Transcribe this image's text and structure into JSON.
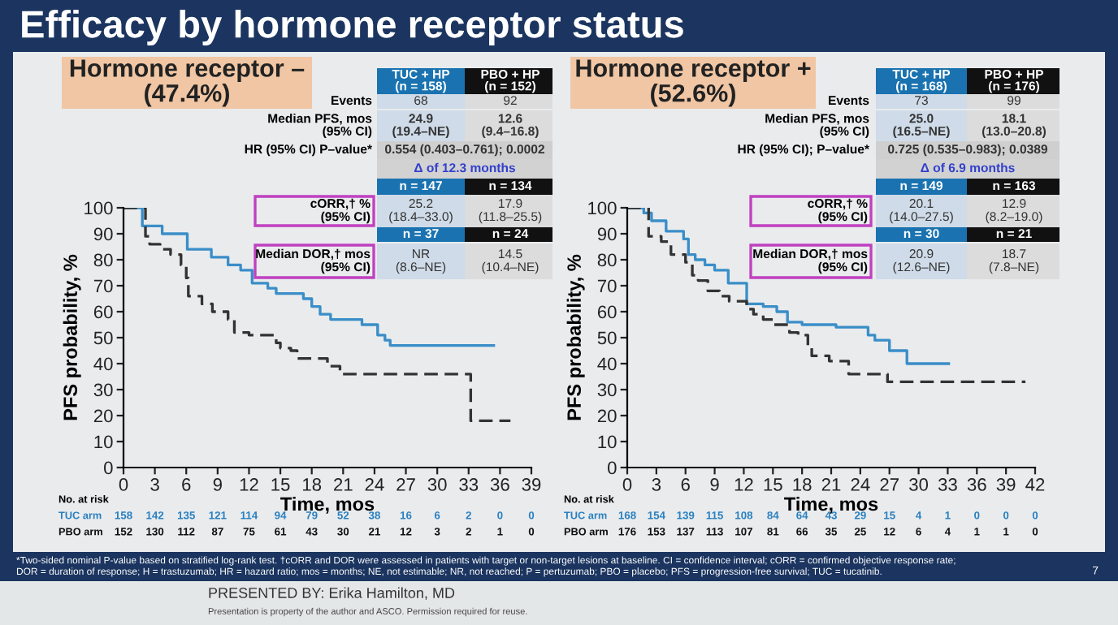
{
  "chart_data": [
    {
      "type": "step",
      "title": "Efficacy by hormone receptor status",
      "subtitle": "Hormone receptor –\n(47.4%)",
      "xlabel": "Time, mos",
      "ylabel": "PFS probability, %",
      "xlim": [
        0,
        39
      ],
      "xticks": [
        0,
        3,
        6,
        9,
        12,
        15,
        18,
        21,
        24,
        27,
        30,
        33,
        36,
        39
      ],
      "ylim": [
        0,
        100
      ],
      "yticks": [
        0,
        10,
        20,
        30,
        40,
        50,
        60,
        70,
        80,
        90,
        100
      ],
      "grid": false,
      "legend": false,
      "marker": "none",
      "series": [
        {
          "color": "#3a8ec8",
          "line_style": "solid",
          "x": [
            0,
            1.8,
            3.7,
            6.1,
            8.4,
            10,
            11.2,
            12.3,
            13.8,
            14.6,
            17.2,
            18,
            18.8,
            19.8,
            22.8,
            24.3,
            25,
            25.5,
            35.4
          ],
          "values": [
            100,
            93,
            90,
            84,
            81,
            78,
            76,
            71,
            69,
            67,
            65,
            62,
            59,
            57,
            55,
            51,
            49,
            47,
            47
          ]
        },
        {
          "color": "#333333",
          "line_style": "dashed",
          "x": [
            0,
            2.1,
            2.5,
            3.5,
            4.5,
            5.5,
            6,
            6.2,
            7.5,
            8.5,
            10,
            10.6,
            12,
            14.6,
            15,
            16,
            16.6,
            18,
            19.5,
            20.7,
            33,
            33.2,
            37
          ],
          "values": [
            100,
            89,
            86,
            84,
            82,
            78,
            73,
            66,
            63,
            60,
            57,
            52,
            51,
            48,
            46,
            45,
            42,
            42,
            39,
            36,
            36,
            18,
            18
          ]
        }
      ],
      "annotations": [
        "TUC + HP\n(n = 158)",
        "PBO + HP\n(n = 152)",
        "Events",
        "68",
        "92",
        "Median PFS, mos\n(95% CI)",
        "24.9\n(19.4–NE)",
        "12.6\n(9.4–16.8)",
        "HR (95% CI) P–value*",
        "0.554 (0.403–0.761); 0.0002",
        "Δ of 12.3 months",
        "n = 147",
        "n = 134",
        "cORR,† %\n(95% CI)",
        "25.2\n(18.4–33.0)",
        "17.9\n(11.8–25.5)",
        "n = 37",
        "n = 24",
        "Median DOR,† mos\n(95% CI)",
        "NR\n(8.6–NE)",
        "14.5\n(10.4–NE)",
        "No. at risk",
        "TUC arm",
        "PBO arm",
        "158",
        "142",
        "135",
        "121",
        "114",
        "94",
        "79",
        "52",
        "38",
        "16",
        "6",
        "2",
        "0",
        "0",
        "152",
        "130",
        "112",
        "87",
        "75",
        "61",
        "43",
        "30",
        "21",
        "12",
        "3",
        "2",
        "1",
        "0",
        "*Two-sided nominal P-value based on stratified log-rank test. †cORR and DOR were assessed in patients with target or non-target lesions at baseline. CI = confidence interval; cORR = confirmed objective response rate;\nDOR = duration of response; H = trastuzumab; HR = hazard ratio; mos = months; NE, not estimable; NR, not reached; P = pertuzumab; PBO = placebo; PFS = progression-free survival; TUC = tucatinib.",
        "7",
        "PRESENTED BY: Erika Hamilton, MD",
        "Presentation is property of the author and ASCO. Permission required for reuse."
      ]
    },
    {
      "type": "step",
      "subtitle": "Hormone receptor +\n(52.6%)",
      "xlabel": "Time, mos",
      "ylabel": "PFS probability, %",
      "xlim": [
        0,
        42
      ],
      "xticks": [
        0,
        3,
        6,
        9,
        12,
        15,
        18,
        21,
        24,
        27,
        30,
        33,
        36,
        39,
        42
      ],
      "ylim": [
        0,
        100
      ],
      "yticks": [
        0,
        10,
        20,
        30,
        40,
        50,
        60,
        70,
        80,
        90,
        100
      ],
      "grid": false,
      "legend": false,
      "marker": "none",
      "series": [
        {
          "color": "#3a8ec8",
          "line_style": "solid",
          "x": [
            0,
            1.7,
            2.5,
            4,
            5.8,
            6.3,
            7,
            8,
            9,
            10.4,
            12.3,
            14,
            15.4,
            16.5,
            18,
            21.5,
            24.8,
            25.5,
            27,
            28.8,
            33.1
          ],
          "values": [
            100,
            98,
            95,
            91,
            88,
            82,
            80,
            78,
            76,
            71,
            63,
            62,
            60,
            56,
            55,
            54,
            51,
            49,
            45,
            40,
            40
          ]
        },
        {
          "color": "#333333",
          "line_style": "dashed",
          "x": [
            0,
            2.2,
            3.5,
            4.5,
            6,
            6.7,
            7.3,
            8.3,
            9.5,
            10.5,
            12.3,
            13,
            14,
            15,
            16.7,
            17.6,
            18.6,
            19,
            20.8,
            22.8,
            26.8,
            41
          ],
          "values": [
            100,
            89,
            87,
            82,
            79,
            74,
            72,
            68,
            66,
            64,
            61,
            59,
            57,
            55,
            52,
            51,
            47,
            43,
            41,
            36,
            33,
            33
          ]
        }
      ],
      "annotations": [
        "TUC + HP\n(n = 168)",
        "PBO + HP\n(n = 176)",
        "Events",
        "73",
        "99",
        "Median PFS, mos\n(95% CI)",
        "25.0\n(16.5–NE)",
        "18.1\n(13.0–20.8)",
        "HR (95% CI); P–value*",
        "0.725 (0.535–0.983); 0.0389",
        "Δ of 6.9 months",
        "n = 149",
        "n = 163",
        "cORR,† %\n(95% CI)",
        "20.1\n(14.0–27.5)",
        "12.9\n(8.2–19.0)",
        "n = 30",
        "n = 21",
        "Median DOR,† mos\n(95% CI)",
        "20.9\n(12.6–NE)",
        "18.7\n(7.8–NE)",
        "No. at risk",
        "TUC arm",
        "PBO arm",
        "168",
        "154",
        "139",
        "115",
        "108",
        "84",
        "64",
        "43",
        "29",
        "15",
        "4",
        "1",
        "0",
        "0",
        "0",
        "176",
        "153",
        "137",
        "113",
        "107",
        "81",
        "66",
        "35",
        "25",
        "12",
        "6",
        "4",
        "1",
        "1",
        "0"
      ]
    }
  ]
}
